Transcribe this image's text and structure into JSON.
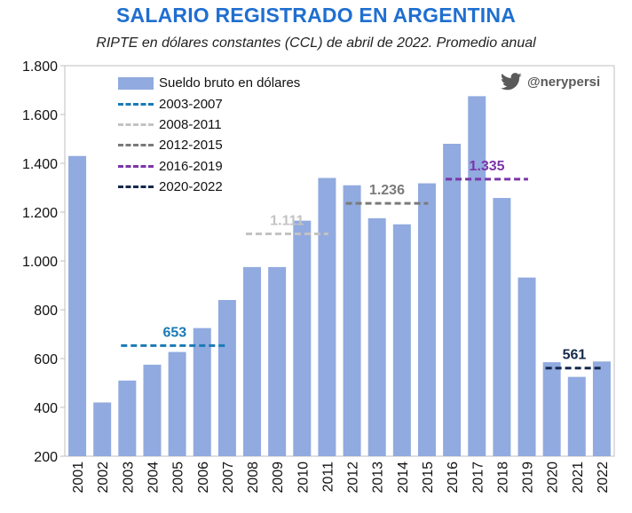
{
  "title": "SALARIO REGISTRADO EN ARGENTINA",
  "subtitle": "RIPTE en dólares constantes (CCL) de abril de 2022. Promedio anual",
  "handle": "@nerypersi",
  "icon": "twitter-bird-icon",
  "colors": {
    "bar": "#91aadf",
    "title": "#1f6fd0",
    "grid": "#d9d9d9"
  },
  "chart_data": {
    "type": "bar",
    "categories": [
      "2001",
      "2002",
      "2003",
      "2004",
      "2005",
      "2006",
      "2007",
      "2008",
      "2009",
      "2010",
      "2011",
      "2012",
      "2013",
      "2014",
      "2015",
      "2016",
      "2017",
      "2018",
      "2019",
      "2020",
      "2021",
      "2022"
    ],
    "series": [
      {
        "name": "Sueldo bruto en dólares",
        "values": [
          1430,
          420,
          510,
          575,
          627,
          725,
          840,
          975,
          975,
          1165,
          1340,
          1310,
          1175,
          1150,
          1318,
          1480,
          1675,
          1258,
          932,
          585,
          525,
          588
        ]
      }
    ],
    "averages": [
      {
        "name": "2003-2007",
        "from": "2003",
        "to": "2007",
        "value": 653,
        "label": "653",
        "color": "#1a7ab5"
      },
      {
        "name": "2008-2011",
        "from": "2008",
        "to": "2011",
        "value": 1111,
        "label": "1.111",
        "color": "#c3c3c3"
      },
      {
        "name": "2012-2015",
        "from": "2012",
        "to": "2015",
        "value": 1236,
        "label": "1.236",
        "color": "#7a7a7a"
      },
      {
        "name": "2016-2019",
        "from": "2016",
        "to": "2019",
        "value": 1335,
        "label": "1.335",
        "color": "#7b35a8"
      },
      {
        "name": "2020-2022",
        "from": "2020",
        "to": "2022",
        "value": 561,
        "label": "561",
        "color": "#14284b"
      }
    ],
    "ylim": [
      200,
      1800
    ],
    "yticks": [
      200,
      400,
      600,
      800,
      1000,
      1200,
      1400,
      1600,
      1800
    ],
    "ytick_labels": [
      "200",
      "400",
      "600",
      "800",
      "1.000",
      "1.200",
      "1.400",
      "1.600",
      "1.800"
    ],
    "grid": false,
    "legend_position": "top-left"
  }
}
